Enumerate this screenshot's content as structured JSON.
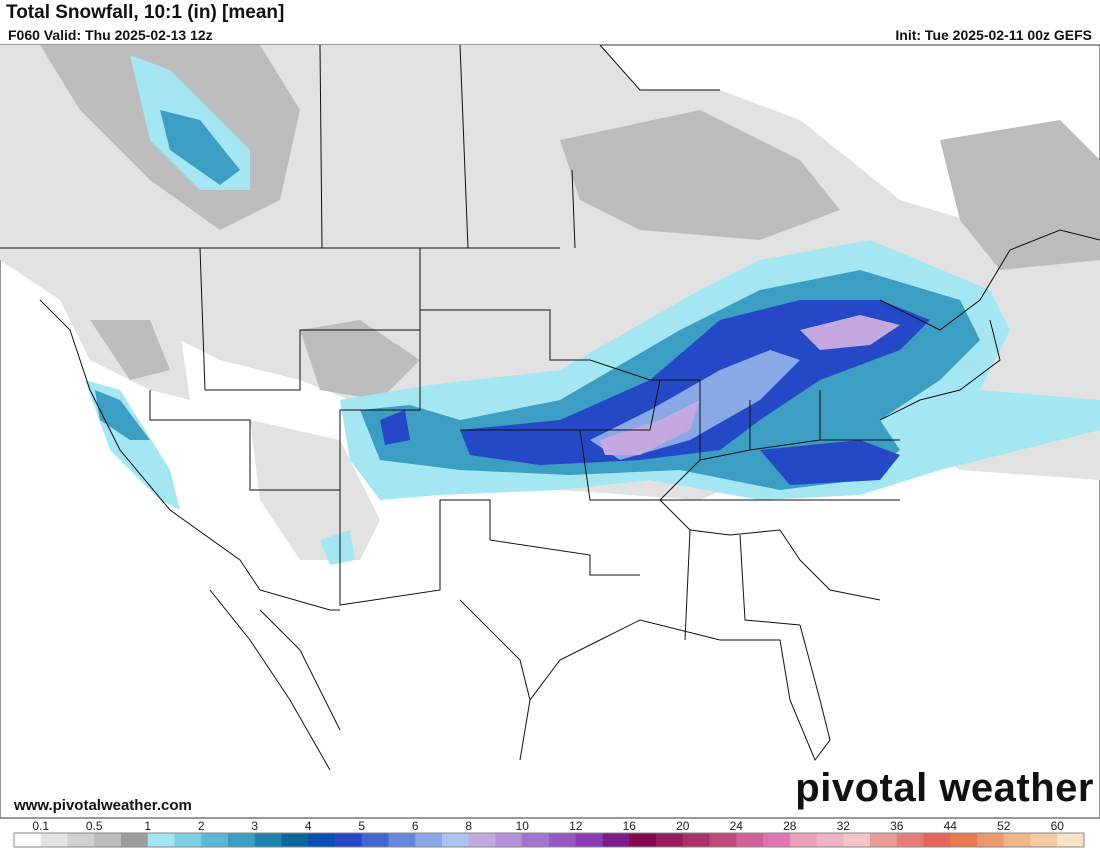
{
  "header": {
    "title": "Total Snowfall, 10:1 (in) [mean]",
    "valid": "F060 Valid: Thu 2025-02-13 12z",
    "init": "Init: Tue 2025-02-11 00z GEFS"
  },
  "footer": {
    "website": "www.pivotalweather.com",
    "watermark": "pivotal weather"
  },
  "colorbar": {
    "ticks": [
      0.1,
      0.5,
      1,
      2,
      3,
      4,
      5,
      6,
      8,
      10,
      12,
      16,
      20,
      24,
      28,
      32,
      36,
      44,
      52,
      60
    ],
    "colors": [
      "#ffffff",
      "#e4e4e4",
      "#d0d0d0",
      "#bcbcbc",
      "#9c9c9c",
      "#a4e6f2",
      "#7ed0e4",
      "#5cb8d4",
      "#3c9ec2",
      "#1e84ae",
      "#08689c",
      "#0a4eb4",
      "#2448c6",
      "#4068d0",
      "#6488dc",
      "#88a8e6",
      "#acc4ee",
      "#c4a8e0",
      "#b490d6",
      "#a274cc",
      "#9458c0",
      "#8a3cb2",
      "#7c1c8a",
      "#820a50",
      "#961e5e",
      "#aa326c",
      "#be4a7c",
      "#d0609a",
      "#de74b0",
      "#e8a0b8",
      "#eab4c4",
      "#f0c4c8",
      "#e89a96",
      "#e67e78",
      "#e4665c",
      "#e67a52",
      "#e8986c",
      "#eeb48a",
      "#f2cca4",
      "#f8e4c4"
    ]
  }
}
